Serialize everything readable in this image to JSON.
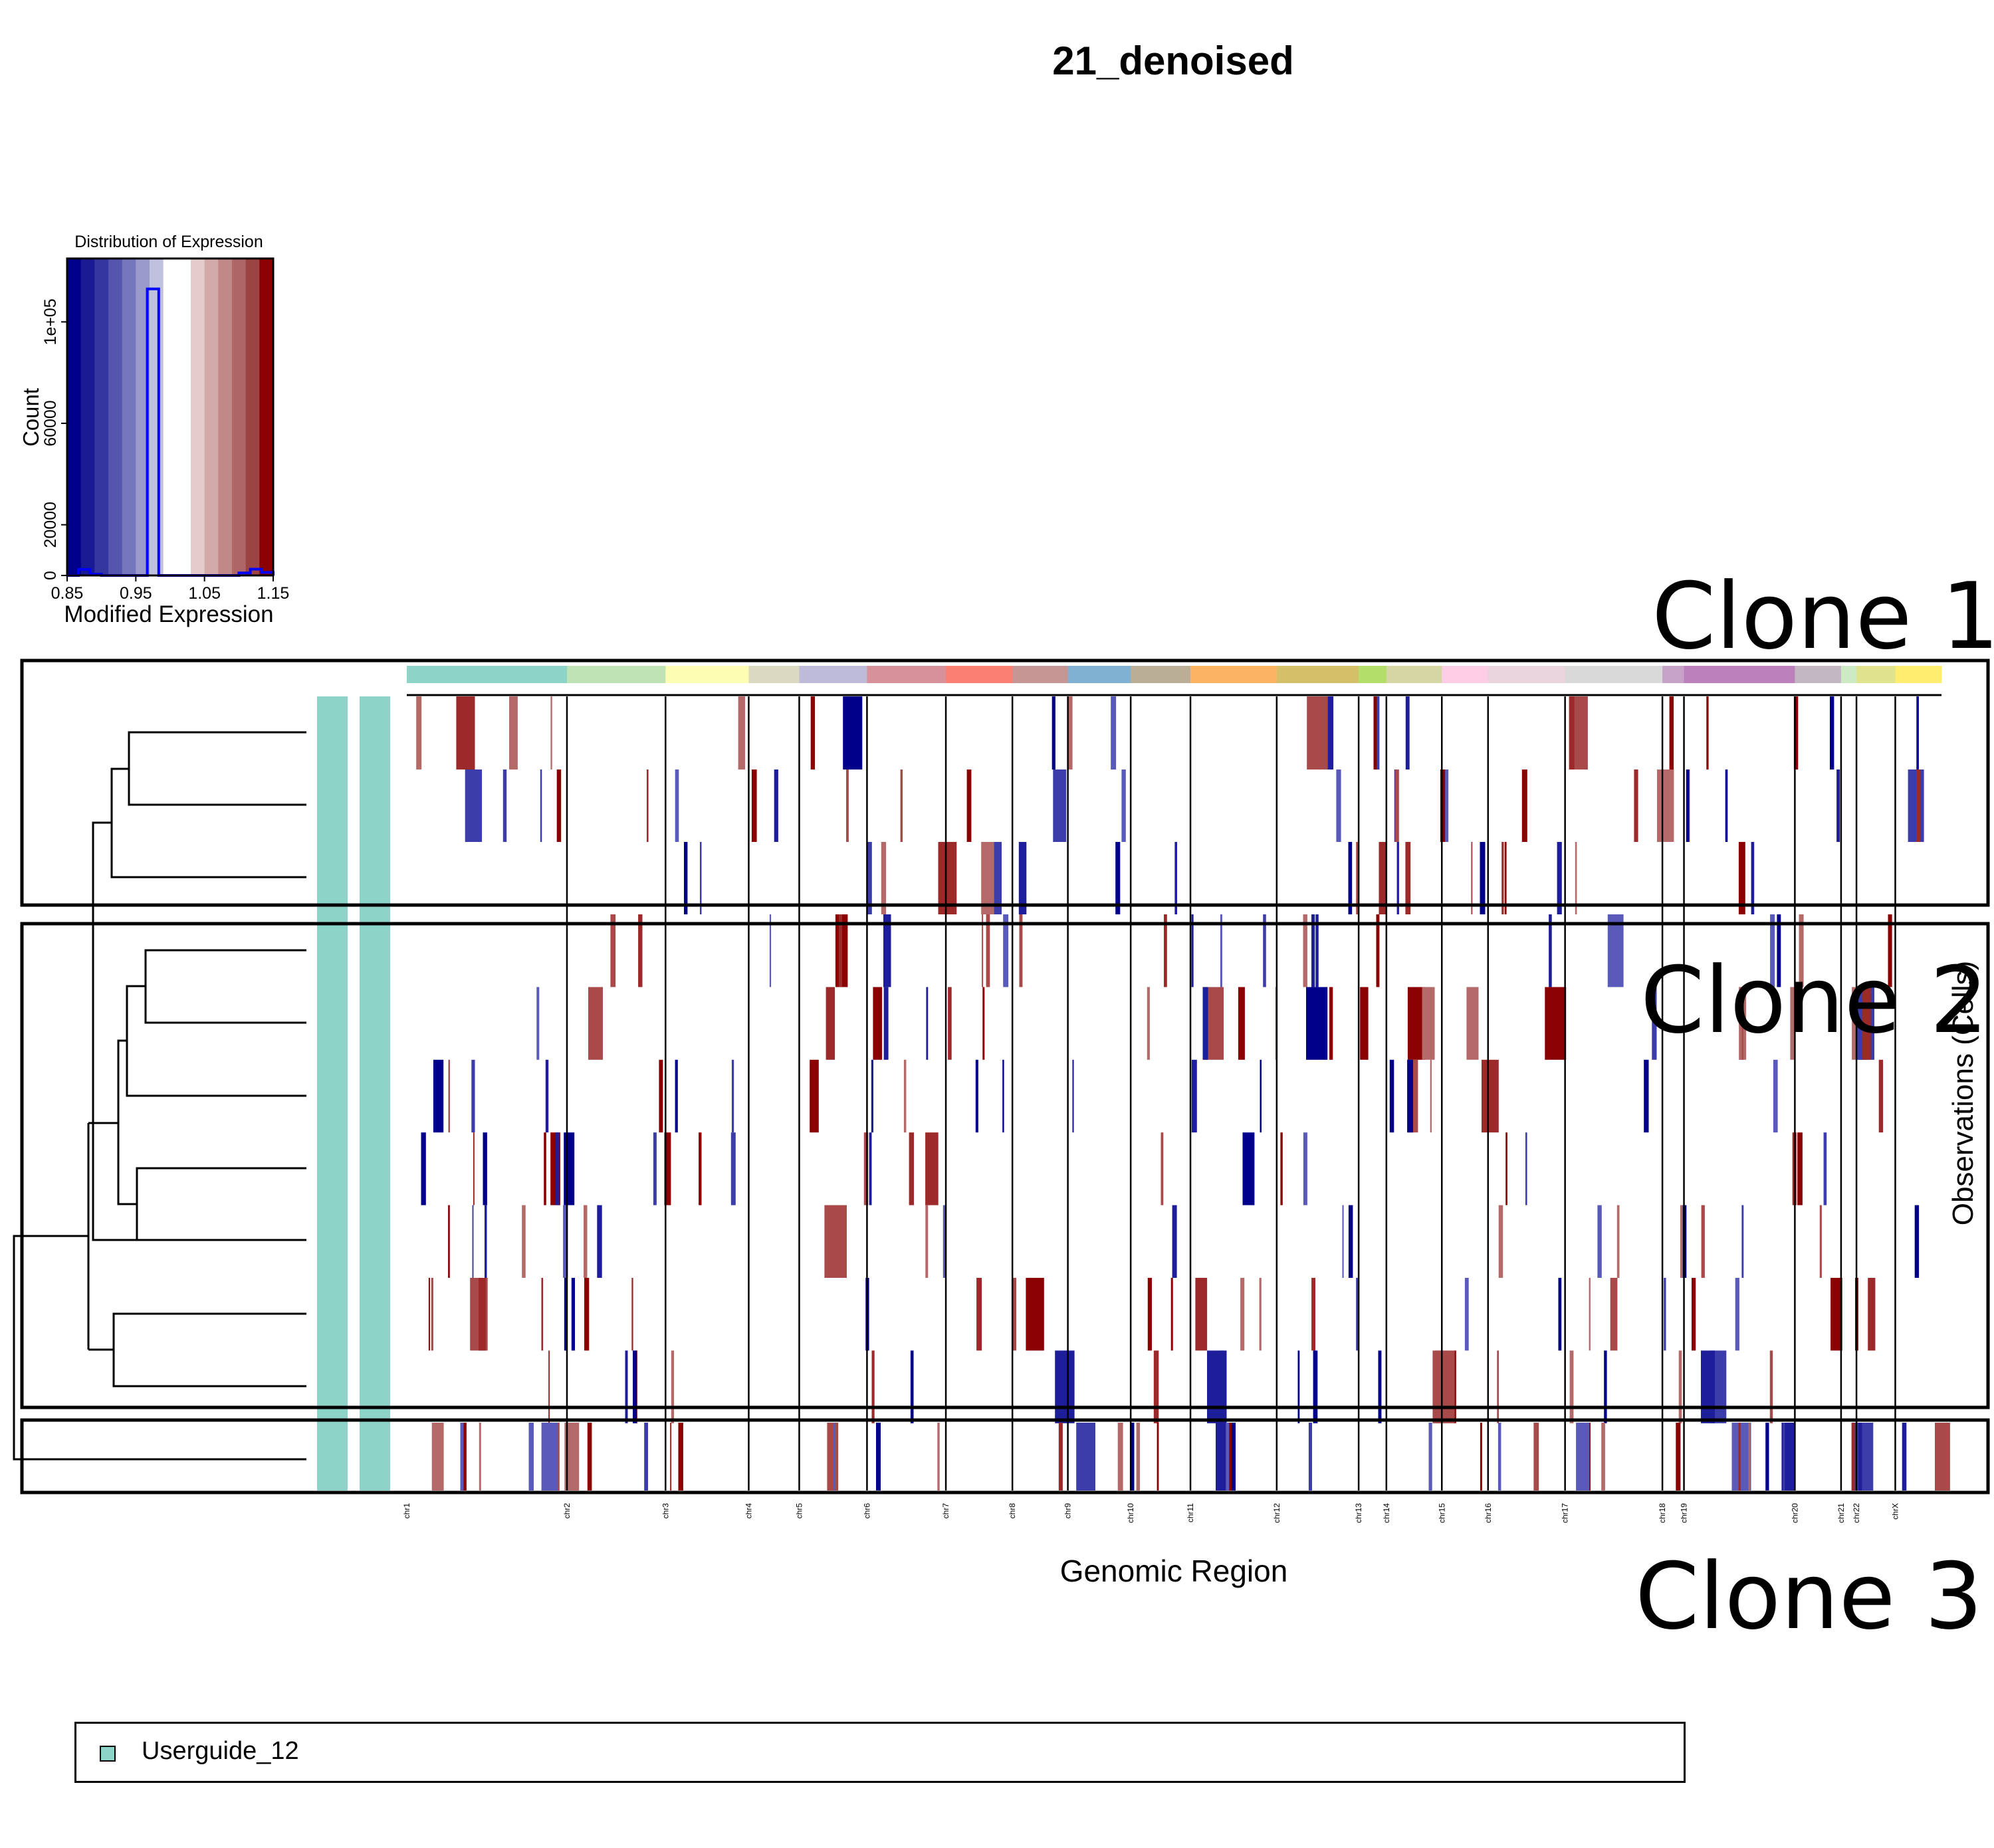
{
  "colors": {
    "gain": "#8b0000",
    "loss": "#00008b",
    "group_bar": "#8dd3c7",
    "frame": "#000000"
  },
  "chart_data": {
    "type": "heatmap",
    "title": "21_denoised",
    "xlabel": "Genomic Region",
    "ylabel": "Observations (Cells)",
    "value_range": [
      0.85,
      1.15
    ],
    "chromosomes": [
      {
        "name": "chr1",
        "size": 260,
        "color": "#8dd3c7"
      },
      {
        "name": "chr2",
        "size": 160,
        "color": "#bfe3b4"
      },
      {
        "name": "chr3",
        "size": 135,
        "color": "#fdfdb3"
      },
      {
        "name": "chr4",
        "size": 82,
        "color": "#dcd9c2"
      },
      {
        "name": "chr5",
        "size": 110,
        "color": "#bebada"
      },
      {
        "name": "chr6",
        "size": 128,
        "color": "#d7919b"
      },
      {
        "name": "chr7",
        "size": 108,
        "color": "#fb8072"
      },
      {
        "name": "chr8",
        "size": 90,
        "color": "#c59694"
      },
      {
        "name": "chr9",
        "size": 102,
        "color": "#80b1d3"
      },
      {
        "name": "chr10",
        "size": 97,
        "color": "#bbae97"
      },
      {
        "name": "chr11",
        "size": 140,
        "color": "#fdb462"
      },
      {
        "name": "chr12",
        "size": 133,
        "color": "#d3c068"
      },
      {
        "name": "chr13",
        "size": 45,
        "color": "#b3de69"
      },
      {
        "name": "chr14",
        "size": 90,
        "color": "#d6d6a4"
      },
      {
        "name": "chr15",
        "size": 75,
        "color": "#fccde5"
      },
      {
        "name": "chr16",
        "size": 125,
        "color": "#ead5de"
      },
      {
        "name": "chr17",
        "size": 158,
        "color": "#d9d9d9"
      },
      {
        "name": "chr18",
        "size": 35,
        "color": "#c6a2c6"
      },
      {
        "name": "chr19",
        "size": 180,
        "color": "#bc80bd"
      },
      {
        "name": "chr20",
        "size": 75,
        "color": "#c4b7c4"
      },
      {
        "name": "chr21",
        "size": 25,
        "color": "#ccebc5"
      },
      {
        "name": "chr22",
        "size": 63,
        "color": "#e1e28e"
      },
      {
        "name": "chrX",
        "size": 75,
        "color": "#ffed6f"
      }
    ],
    "clones": [
      "Clone 1",
      "Clone 2",
      "Clone 3"
    ],
    "cells_per_clone": [
      3,
      7,
      1
    ]
  },
  "color_key": {
    "title": "Distribution of Expression",
    "xlabel": "Modified Expression",
    "ylabel": "Count",
    "x_ticks": [
      "0.85",
      "0.95",
      "1.05",
      "1.15"
    ],
    "y_ticks": [
      "0",
      "20000",
      "60000",
      "1e+05"
    ],
    "histogram_counts": [
      0,
      2400,
      500,
      0,
      0,
      0,
      0,
      113000,
      0,
      0,
      0,
      0,
      0,
      0,
      0,
      1000,
      2500,
      1200
    ],
    "y_max": 125000,
    "colors": [
      "#00008b",
      "#1a1a93",
      "#36369f",
      "#5555ad",
      "#7676bd",
      "#9a9acd",
      "#c0c0df",
      "#ffffff",
      "#ffffff",
      "#e5cccc",
      "#d3aaaa",
      "#c18888",
      "#af6666",
      "#9c4444",
      "#8b0000"
    ]
  },
  "clone_labels": [
    "Clone 1",
    "Clone 2",
    "Clone 3"
  ],
  "legend": {
    "label": "Userguide_12"
  }
}
